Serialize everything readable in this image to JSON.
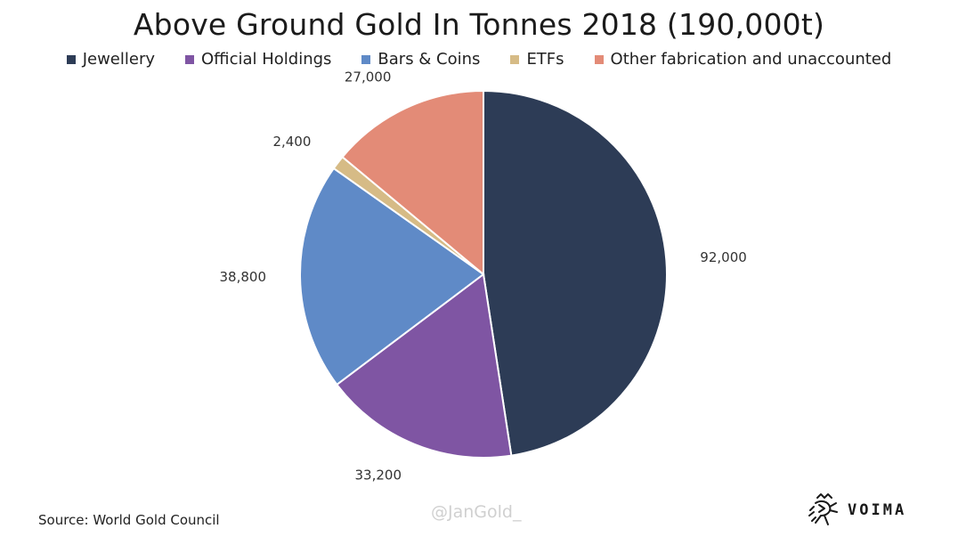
{
  "chart_data": {
    "type": "pie",
    "title": "Above Ground Gold In Tonnes 2018 (190,000t)",
    "legend_position": "top",
    "slices": [
      {
        "name": "Jewellery",
        "value": 92000,
        "label": "92,000",
        "color": "#2d3c56"
      },
      {
        "name": "Official Holdings",
        "value": 33200,
        "label": "33,200",
        "color": "#7f55a3"
      },
      {
        "name": "Bars & Coins",
        "value": 38800,
        "label": "38,800",
        "color": "#5f8ac7"
      },
      {
        "name": "ETFs",
        "value": 2400,
        "label": "2,400",
        "color": "#d6bb86"
      },
      {
        "name": "Other fabrication and unaccounted",
        "value": 27000,
        "label": "27,000",
        "color": "#e38b77"
      }
    ]
  },
  "footer": {
    "source": "Source: World Gold Council",
    "watermark": "@JanGold_",
    "logo_text": "VOIMA",
    "logo_icon": "heraldic-lion-icon"
  }
}
